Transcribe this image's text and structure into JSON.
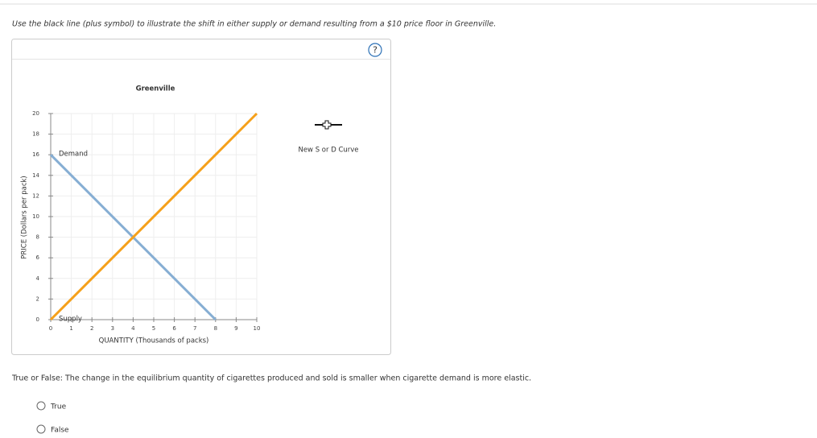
{
  "instruction": "Use the black line (plus symbol) to illustrate the shift in either supply or demand resulting from a $10 price floor in Greenville.",
  "help_icon": "?",
  "tool_label": "New S or D Curve",
  "chart_data": {
    "type": "line",
    "title": "Greenville",
    "x_label": "QUANTITY (Thousands of packs)",
    "y_label": "PRICE (Dollars per pack)",
    "xlim": [
      0,
      10
    ],
    "xticks": [
      0,
      1,
      2,
      3,
      4,
      5,
      6,
      7,
      8,
      9,
      10
    ],
    "ylim": [
      0,
      20
    ],
    "yticks": [
      0,
      2,
      4,
      6,
      8,
      10,
      12,
      14,
      16,
      18,
      20
    ],
    "grid": true,
    "series": [
      {
        "name": "Demand",
        "color": "#86aed3",
        "x": [
          0,
          8
        ],
        "values": [
          16,
          0
        ]
      },
      {
        "name": "Supply",
        "color": "#f5a01a",
        "x": [
          0,
          10
        ],
        "values": [
          0,
          20
        ]
      }
    ]
  },
  "question": "True or False: The change in the equilibrium quantity of cigarettes produced and sold is smaller when cigarette demand is more elastic.",
  "options": [
    "True",
    "False"
  ]
}
